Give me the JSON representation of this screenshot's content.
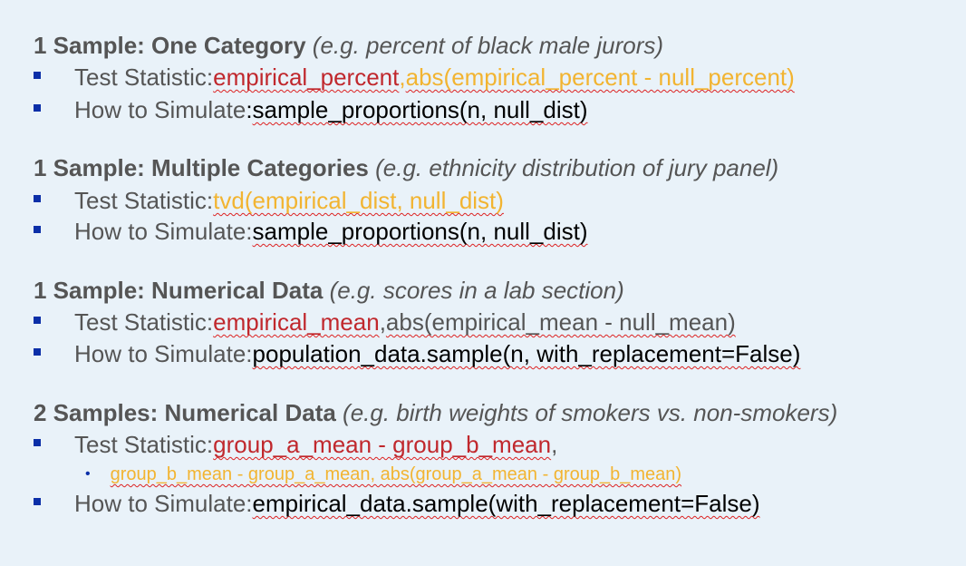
{
  "sections": [
    {
      "title": "1 Sample: One Category",
      "example": "(e.g. percent of black male jurors)",
      "test_label": "Test Statistic: ",
      "test_a": "empirical_percent",
      "test_sep": ", ",
      "test_b": "abs(empirical_percent - null_percent)",
      "sim_label": "How to Simulate",
      "sim_colon": ": ",
      "sim_code": "sample_proportions(n, null_dist)"
    },
    {
      "title": "1 Sample: Multiple Categories",
      "example": "(e.g. ethnicity distribution of jury panel)",
      "test_label": "Test Statistic: ",
      "test_b": "tvd(empirical_dist, null_dist)",
      "sim_label": "How to Simulate: ",
      "sim_code": "sample_proportions(n, null_dist)"
    },
    {
      "title": "1 Sample: Numerical Data",
      "example": "(e.g. scores in a lab section)",
      "test_label": "Test Statistic: ",
      "test_a": "empirical_mean",
      "test_sep": ", ",
      "test_b": "abs(empirical_mean - null_mean)",
      "sim_label": "How to Simulate: ",
      "sim_code": "population_data.sample(n, with_replacement=False)"
    },
    {
      "title": "2 Samples: Numerical Data",
      "example": "(e.g. birth weights of smokers vs. non-smokers)",
      "test_label": "Test Statistic: ",
      "test_a": "group_a_mean - group_b_mean",
      "test_sep": ",",
      "sub_b": "group_b_mean - group_a_mean, abs(group_a_mean - group_b_mean)",
      "sim_label": "How to Simulate: ",
      "sim_code": "empirical_data.sample(with_replacement=False)"
    }
  ],
  "colors": {
    "background": "#e9f2f9",
    "heading": "#555555",
    "bullet": "#0b2fa8",
    "red_code": "#c0282d",
    "orange_code": "#f2b431",
    "code": "#000000"
  }
}
